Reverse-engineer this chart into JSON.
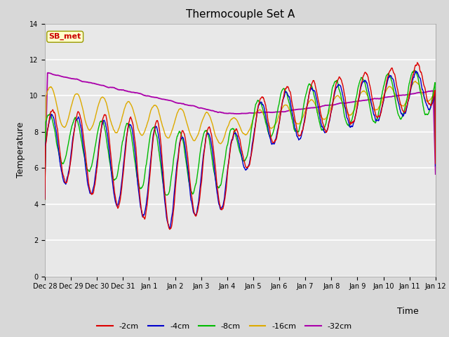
{
  "title": "Thermocouple Set A",
  "xlabel": "Time",
  "ylabel": "Temperature",
  "ylim": [
    0,
    14
  ],
  "yticks": [
    0,
    2,
    4,
    6,
    8,
    10,
    12,
    14
  ],
  "xtick_labels": [
    "Dec 28",
    "Dec 29",
    "Dec 30",
    "Dec 31",
    "Jan 1",
    "Jan 2",
    "Jan 3",
    "Jan 4",
    "Jan 5",
    "Jan 6",
    "Jan 7",
    "Jan 8",
    "Jan 9",
    "Jan 10",
    "Jan 11",
    "Jan 12"
  ],
  "annotation_text": "SB_met",
  "annotation_color": "#cc0000",
  "annotation_bg": "#ffffcc",
  "plot_bg_color": "#e8e8e8",
  "fig_bg_color": "#d8d8d8",
  "line_colors": {
    "-2cm": "#dd0000",
    "-4cm": "#0000cc",
    "-8cm": "#00bb00",
    "-16cm": "#ddaa00",
    "-32cm": "#aa00aa"
  },
  "line_width": 1.0,
  "title_fontsize": 11,
  "axis_label_fontsize": 9,
  "tick_fontsize": 7,
  "legend_fontsize": 8
}
